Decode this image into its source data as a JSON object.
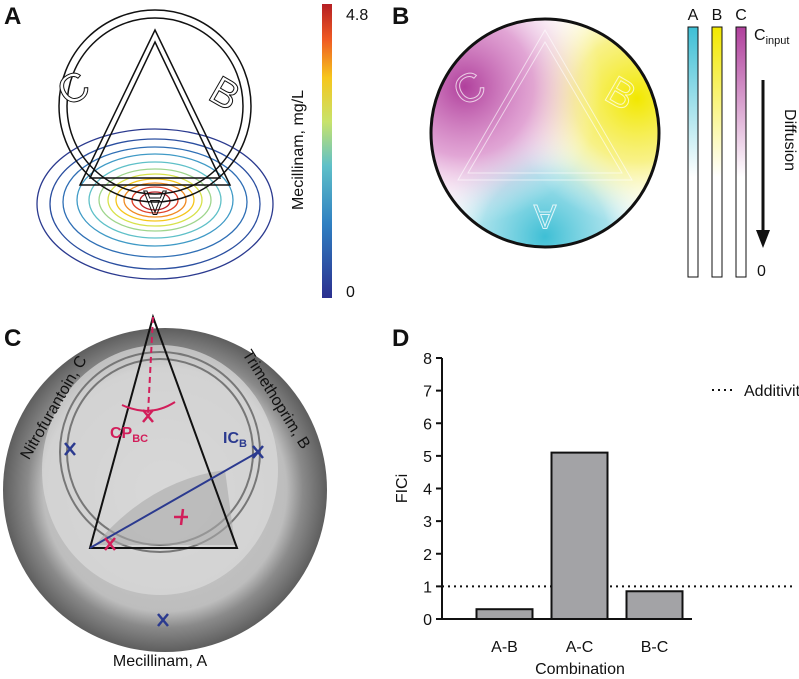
{
  "panels": {
    "A": {
      "letter": "A",
      "shape_labels": [
        "C",
        "B",
        "A"
      ],
      "colorbar_label": "Mecillinam, mg/L",
      "colorbar_ticks": [
        0,
        4.8
      ]
    },
    "B": {
      "letter": "B",
      "bar_labels": [
        "A",
        "B",
        "C"
      ],
      "input_label": {
        "main": "C",
        "sub": "input"
      },
      "arrow_label": "Diffusion",
      "bottom_label": 0
    },
    "C": {
      "letter": "C",
      "drug_labels": [
        "Nitrofurantoin, C",
        "Trimethoprim, B",
        "Mecillinam, A"
      ],
      "ic_label": {
        "main": "IC",
        "sub": "B"
      },
      "cp_label": {
        "main": "CP",
        "sub": "BC"
      }
    },
    "D": {
      "letter": "D"
    }
  },
  "chart_data": {
    "type": "bar",
    "categories": [
      "A-B",
      "A-C",
      "B-C"
    ],
    "values": [
      0.3,
      5.1,
      0.85
    ],
    "color": "#a3a3a6",
    "xlabel": "Combination",
    "ylabel": "FICi",
    "ylim": [
      0,
      8
    ],
    "yticks": [
      0,
      1,
      2,
      3,
      4,
      5,
      6,
      7,
      8
    ],
    "reference_line": {
      "value": 1,
      "label": "Additivity"
    },
    "legend": "upper right"
  }
}
